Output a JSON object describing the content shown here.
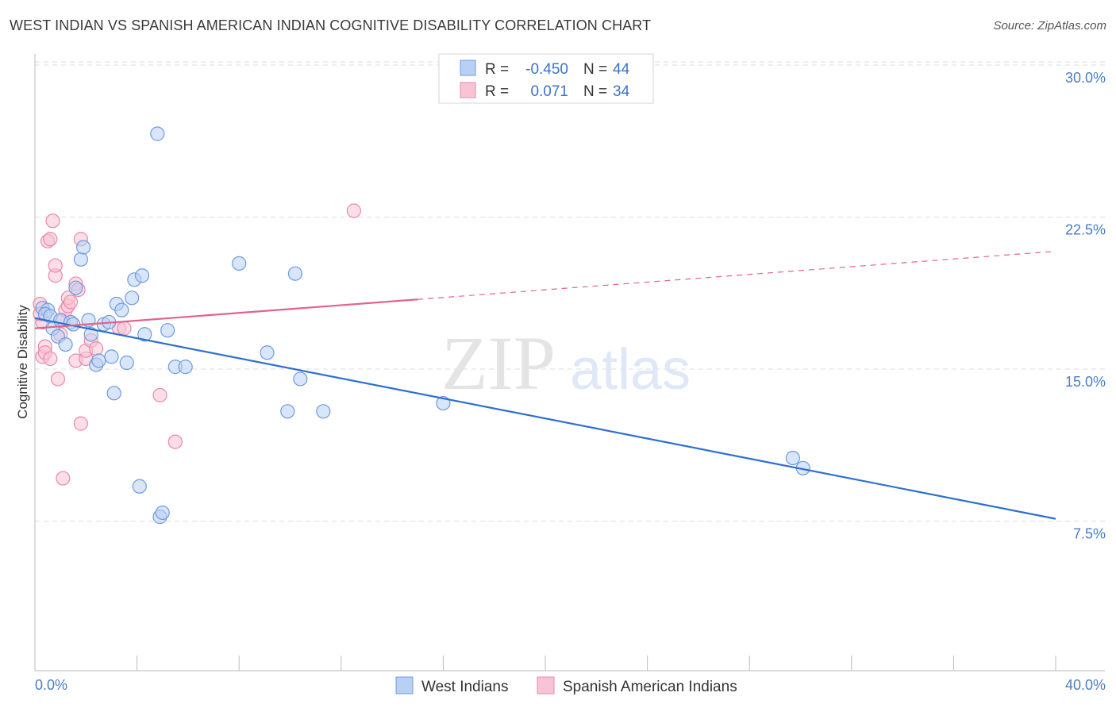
{
  "title": "WEST INDIAN VS SPANISH AMERICAN INDIAN COGNITIVE DISABILITY CORRELATION CHART",
  "source": "Source: ZipAtlas.com",
  "watermark": {
    "zip": "ZIP",
    "atlas": "atlas"
  },
  "legend": {
    "rows": [
      {
        "r_label": "R =",
        "r_value": "-0.450",
        "n_label": "N =",
        "n_value": "44"
      },
      {
        "r_label": "R =",
        "r_value": "0.071",
        "n_label": "N =",
        "n_value": "34"
      }
    ]
  },
  "colors": {
    "blue_fill": "#b9d0f3",
    "blue_stroke": "#6d9be0",
    "blue_line": "#2d6fd1",
    "pink_fill": "#f8c3d3",
    "pink_stroke": "#e98aa8",
    "pink_line": "#e0638e",
    "axis_text": "#4a7cc7",
    "grid": "#dddddd"
  },
  "chart_data": {
    "type": "scatter",
    "title": "WEST INDIAN VS SPANISH AMERICAN INDIAN COGNITIVE DISABILITY CORRELATION CHART",
    "xlabel": "",
    "ylabel": "Cognitive Disability",
    "xlim": [
      0,
      40
    ],
    "ylim": [
      0,
      31.5
    ],
    "x_tick_labels": [
      "0.0%",
      "40.0%"
    ],
    "y_ticks": [
      7.5,
      15.0,
      22.5,
      30.0
    ],
    "y_tick_labels": [
      "7.5%",
      "15.0%",
      "22.5%",
      "30.0%"
    ],
    "grid": "horizontal dashed",
    "legend_position": "top-center",
    "series": [
      {
        "name": "West Indians",
        "R": -0.45,
        "N": 44,
        "trend": {
          "x0": 0,
          "y0": 18.1,
          "x1": 40,
          "y1": 8.2,
          "dashed_from": null
        },
        "points": [
          [
            0.3,
            18.6
          ],
          [
            0.5,
            18.5
          ],
          [
            0.4,
            18.3
          ],
          [
            0.6,
            18.2
          ],
          [
            0.7,
            17.6
          ],
          [
            0.9,
            17.2
          ],
          [
            1.0,
            18.0
          ],
          [
            1.2,
            16.8
          ],
          [
            1.4,
            17.9
          ],
          [
            1.5,
            17.8
          ],
          [
            1.6,
            19.6
          ],
          [
            1.8,
            21.0
          ],
          [
            1.9,
            21.6
          ],
          [
            2.1,
            18.0
          ],
          [
            2.2,
            17.3
          ],
          [
            2.4,
            15.8
          ],
          [
            2.5,
            16.0
          ],
          [
            2.7,
            17.8
          ],
          [
            2.9,
            17.9
          ],
          [
            3.0,
            16.2
          ],
          [
            3.1,
            14.4
          ],
          [
            3.2,
            18.8
          ],
          [
            3.4,
            18.5
          ],
          [
            3.6,
            15.9
          ],
          [
            3.8,
            19.1
          ],
          [
            3.9,
            20.0
          ],
          [
            4.2,
            20.2
          ],
          [
            4.3,
            17.3
          ],
          [
            4.8,
            27.2
          ],
          [
            4.1,
            9.8
          ],
          [
            4.9,
            8.3
          ],
          [
            5.0,
            8.5
          ],
          [
            5.2,
            17.5
          ],
          [
            5.5,
            15.7
          ],
          [
            5.9,
            15.7
          ],
          [
            8.0,
            20.8
          ],
          [
            9.1,
            16.4
          ],
          [
            9.9,
            13.5
          ],
          [
            10.2,
            20.3
          ],
          [
            10.4,
            15.1
          ],
          [
            11.3,
            13.5
          ],
          [
            16.0,
            13.9
          ],
          [
            29.7,
            11.2
          ],
          [
            30.1,
            10.7
          ]
        ]
      },
      {
        "name": "Spanish American Indians",
        "R": 0.071,
        "N": 34,
        "trend": {
          "x0": 0,
          "y0": 17.6,
          "x1": 40,
          "y1": 21.4,
          "dashed_from": 15.0
        },
        "points": [
          [
            0.2,
            18.8
          ],
          [
            0.3,
            17.9
          ],
          [
            0.3,
            16.2
          ],
          [
            0.4,
            16.7
          ],
          [
            0.4,
            16.4
          ],
          [
            0.5,
            21.9
          ],
          [
            0.6,
            22.0
          ],
          [
            0.6,
            16.1
          ],
          [
            0.7,
            22.9
          ],
          [
            0.8,
            20.2
          ],
          [
            0.8,
            20.7
          ],
          [
            0.9,
            15.1
          ],
          [
            1.0,
            17.3
          ],
          [
            1.1,
            18.0
          ],
          [
            1.2,
            18.5
          ],
          [
            1.3,
            18.7
          ],
          [
            1.3,
            19.1
          ],
          [
            1.4,
            18.9
          ],
          [
            1.6,
            16.0
          ],
          [
            1.6,
            19.8
          ],
          [
            1.7,
            19.5
          ],
          [
            1.8,
            22.0
          ],
          [
            1.8,
            12.9
          ],
          [
            2.0,
            16.1
          ],
          [
            2.0,
            16.5
          ],
          [
            2.2,
            17.0
          ],
          [
            2.4,
            16.6
          ],
          [
            3.3,
            17.6
          ],
          [
            3.5,
            17.6
          ],
          [
            4.9,
            14.3
          ],
          [
            5.5,
            12.0
          ],
          [
            12.5,
            23.4
          ],
          [
            1.1,
            10.2
          ],
          [
            0.2,
            18.3
          ]
        ]
      }
    ]
  },
  "bottom_legend": [
    "West Indians",
    "Spanish American Indians"
  ]
}
